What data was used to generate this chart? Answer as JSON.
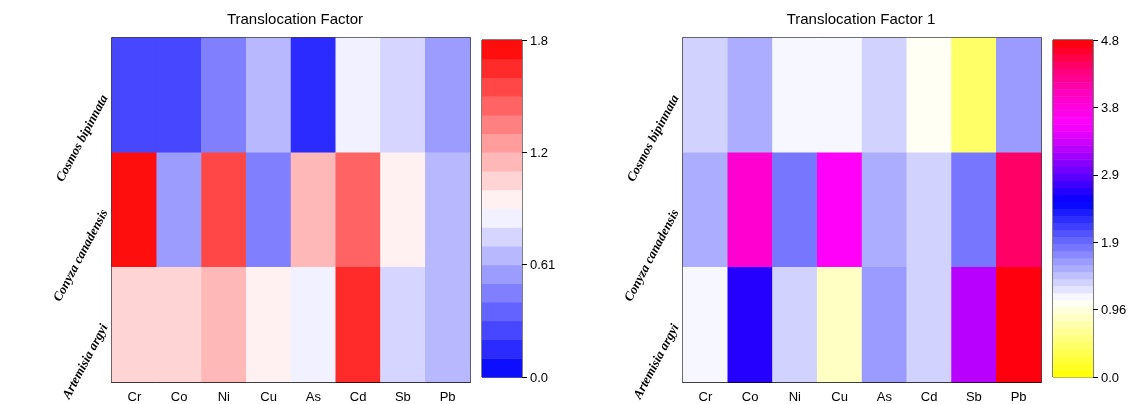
{
  "chart_data": [
    {
      "type": "heatmap",
      "title": "Translocation Factor",
      "categories": [
        "Cr",
        "Co",
        "Ni",
        "Cu",
        "As",
        "Cd",
        "Sb",
        "Pb"
      ],
      "y_categories": [
        "Cosmos bipinnata",
        "Conyza canadensis",
        "Artemisia argyi"
      ],
      "cells": [
        [
          0.25,
          0.25,
          0.45,
          0.65,
          0.15,
          0.85,
          0.75,
          0.55
        ],
        [
          1.78,
          0.55,
          1.55,
          0.45,
          1.15,
          1.45,
          0.95,
          0.65
        ],
        [
          1.05,
          1.05,
          1.15,
          0.95,
          0.85,
          1.65,
          0.75,
          0.65
        ]
      ],
      "clim": [
        0,
        1.83
      ],
      "cticks": [
        {
          "value": 0,
          "label": "0.0"
        },
        0.61,
        {
          "value": 1.22,
          "label": "1.2"
        },
        {
          "value": 1.83,
          "label": "1.8"
        }
      ]
    },
    {
      "type": "heatmap",
      "title": "Translocation Factor 1",
      "categories": [
        "Cr",
        "Co",
        "Ni",
        "Cu",
        "As",
        "Cd",
        "Sb",
        "Pb"
      ],
      "y_categories": [
        "Cosmos bipinnata",
        "Conyza canadensis",
        "Artemisia argyi"
      ],
      "cells": [
        [
          1.35,
          1.5,
          1.12,
          1.12,
          1.35,
          1.0,
          0.45,
          1.65
        ],
        [
          1.5,
          3.9,
          1.85,
          3.6,
          1.5,
          1.35,
          1.85,
          4.4
        ],
        [
          1.12,
          2.6,
          1.35,
          0.85,
          1.65,
          1.35,
          3.2,
          4.7
        ]
      ],
      "clim": [
        0,
        4.8
      ],
      "cticks": [
        {
          "value": 0,
          "label": "0.0"
        },
        0.96,
        {
          "value": 1.92,
          "label": "1.9"
        },
        {
          "value": 2.88,
          "label": "2.9"
        },
        {
          "value": 3.84,
          "label": "3.8"
        },
        4.8
      ]
    }
  ]
}
